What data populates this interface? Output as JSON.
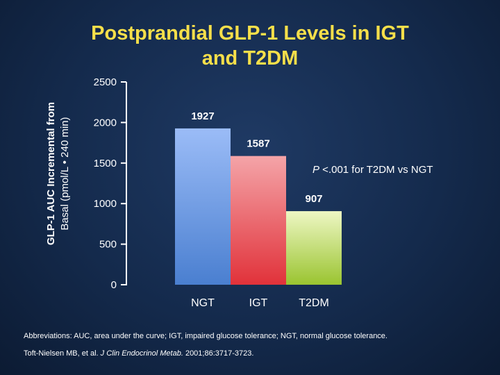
{
  "slide": {
    "title_line1": "Postprandial GLP-1 Levels in IGT",
    "title_line2": "and T2DM"
  },
  "chart_data": {
    "type": "bar",
    "title": "Postprandial GLP-1 Levels in IGT and T2DM",
    "ylabel_line1": "GLP-1 AUC Incremental from",
    "ylabel_line2": "Basal (pmol/L • 240 min)",
    "xlabel": "",
    "categories": [
      "NGT",
      "IGT",
      "T2DM"
    ],
    "values": [
      1927,
      1587,
      907
    ],
    "value_labels": [
      "1927",
      "1587",
      "907"
    ],
    "ylim": [
      0,
      2500
    ],
    "yticks": [
      0,
      500,
      1000,
      1500,
      2000,
      2500
    ],
    "ytick_labels": [
      "0",
      "500",
      "1000",
      "1500",
      "2000",
      "2500"
    ],
    "grid": false,
    "bar_colors": [
      {
        "top": "#9bbcf7",
        "bottom": "#4a7fd0"
      },
      {
        "top": "#f4a4a8",
        "bottom": "#e1323a"
      },
      {
        "top": "#eef7c4",
        "bottom": "#9ac430"
      }
    ],
    "annotation_p": "P",
    "annotation_rest": " <.001 for T2DM vs NGT"
  },
  "footnotes": {
    "abbreviations": "Abbreviations: AUC, area under the curve; IGT, impaired glucose tolerance; NGT, normal glucose tolerance.",
    "ref_authors": "Toft-Nielsen MB, et al. ",
    "ref_journal": "J Clin Endocrinol Metab.",
    "ref_details": " 2001;86:3717-3723."
  }
}
